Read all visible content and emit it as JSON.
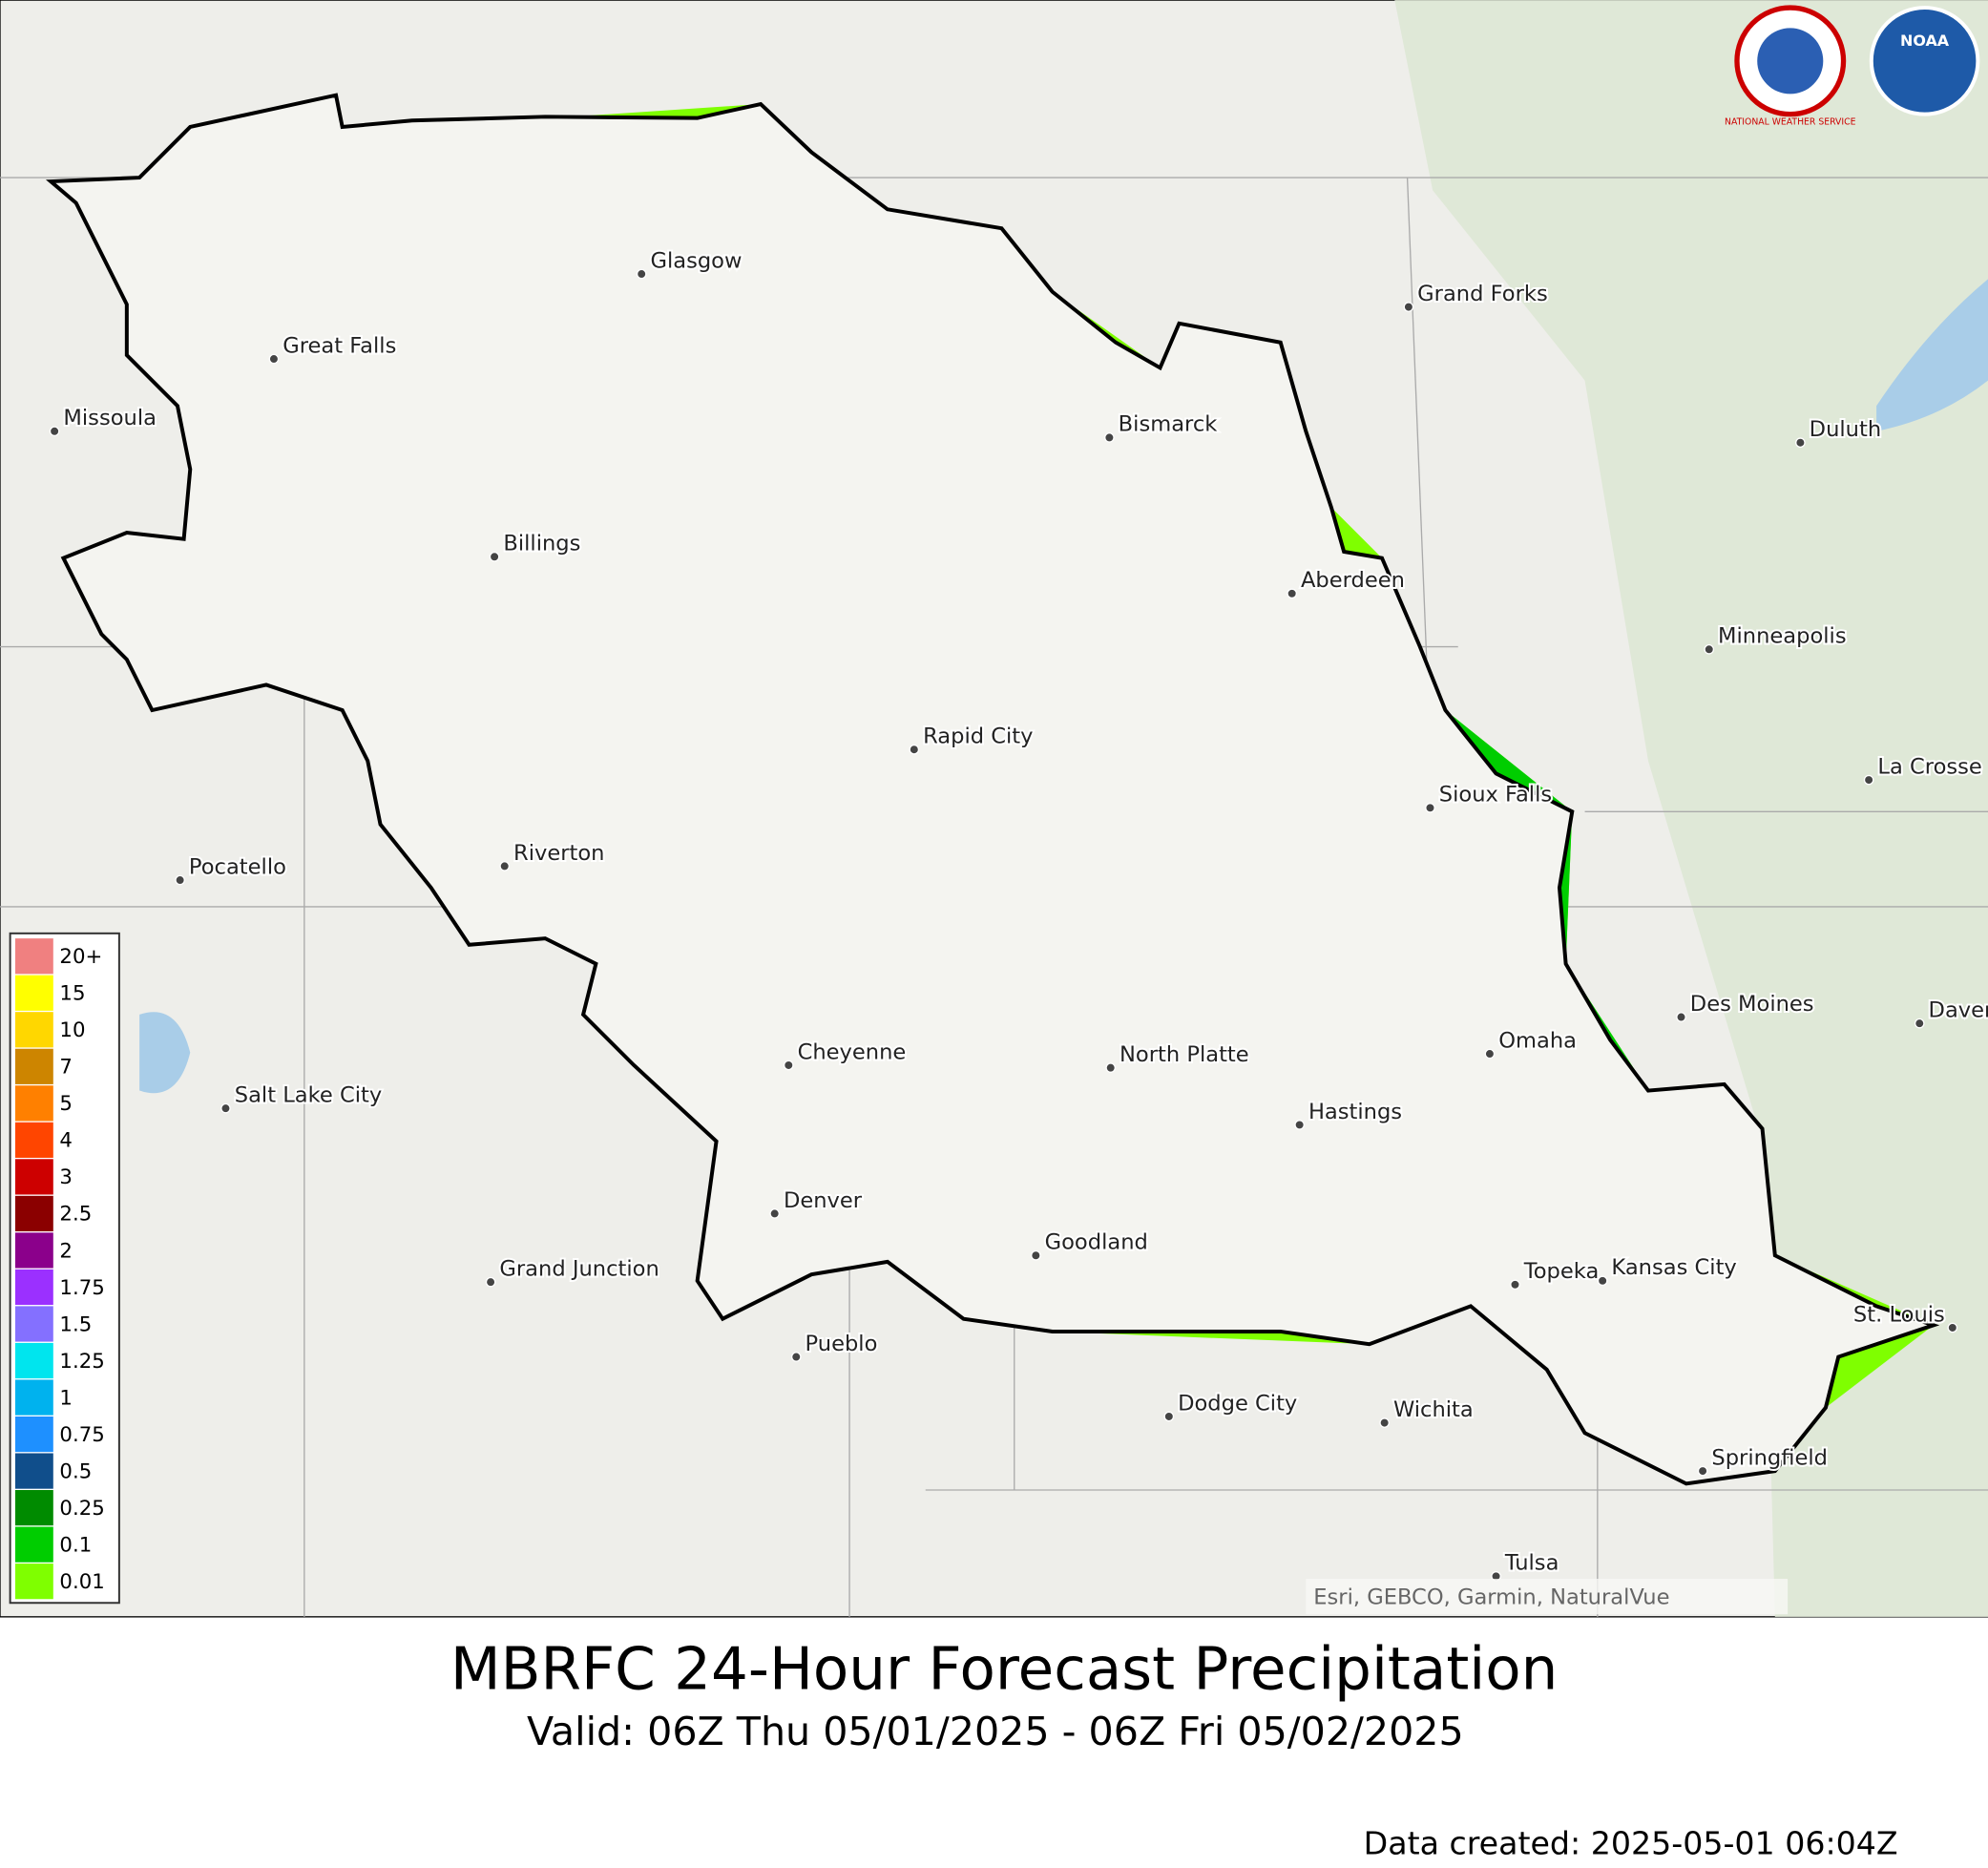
{
  "header": {
    "title": "MBRFC 24-Hour Forecast Precipitation",
    "subtitle": "Valid: 06Z Thu 05/01/2025 - 06Z Fri 05/02/2025",
    "created": "Data created: 2025-05-01 06:04Z"
  },
  "attribution": "Esri, GEBCO, Garmin, NaturalVue",
  "logos": [
    "NATIONAL WEATHER SERVICE",
    "NOAA"
  ],
  "legend": [
    {
      "label": "20+",
      "color": "#f08080"
    },
    {
      "label": "15",
      "color": "#ffff00"
    },
    {
      "label": "10",
      "color": "#ffd700"
    },
    {
      "label": "7",
      "color": "#cd8500"
    },
    {
      "label": "5",
      "color": "#ff8000"
    },
    {
      "label": "4",
      "color": "#ff4500"
    },
    {
      "label": "3",
      "color": "#cd0000"
    },
    {
      "label": "2.5",
      "color": "#8b0000"
    },
    {
      "label": "2",
      "color": "#8b008b"
    },
    {
      "label": "1.75",
      "color": "#9b30ff"
    },
    {
      "label": "1.5",
      "color": "#8470ff"
    },
    {
      "label": "1.25",
      "color": "#00e5ee"
    },
    {
      "label": "1",
      "color": "#00b2ee"
    },
    {
      "label": "0.75",
      "color": "#1e90ff"
    },
    {
      "label": "0.5",
      "color": "#104e8b"
    },
    {
      "label": "0.25",
      "color": "#008b00"
    },
    {
      "label": "0.1",
      "color": "#00cd00"
    },
    {
      "label": "0.01",
      "color": "#7fff00"
    }
  ],
  "cities": [
    "Glasgow",
    "Grand Forks",
    "Great Falls",
    "Missoula",
    "Bismarck",
    "Duluth",
    "Billings",
    "Aberdeen",
    "Minneapolis",
    "Rapid City",
    "La Crosse",
    "Sioux Falls",
    "Riverton",
    "Pocatello",
    "Des Moines",
    "Davenport",
    "Omaha",
    "Cheyenne",
    "North Platte",
    "Salt Lake City",
    "Hastings",
    "Denver",
    "Goodland",
    "Grand Junction",
    "Topeka",
    "Kansas City",
    "St. Louis",
    "Pueblo",
    "Dodge City",
    "Wichita",
    "Springfield",
    "Tulsa"
  ]
}
